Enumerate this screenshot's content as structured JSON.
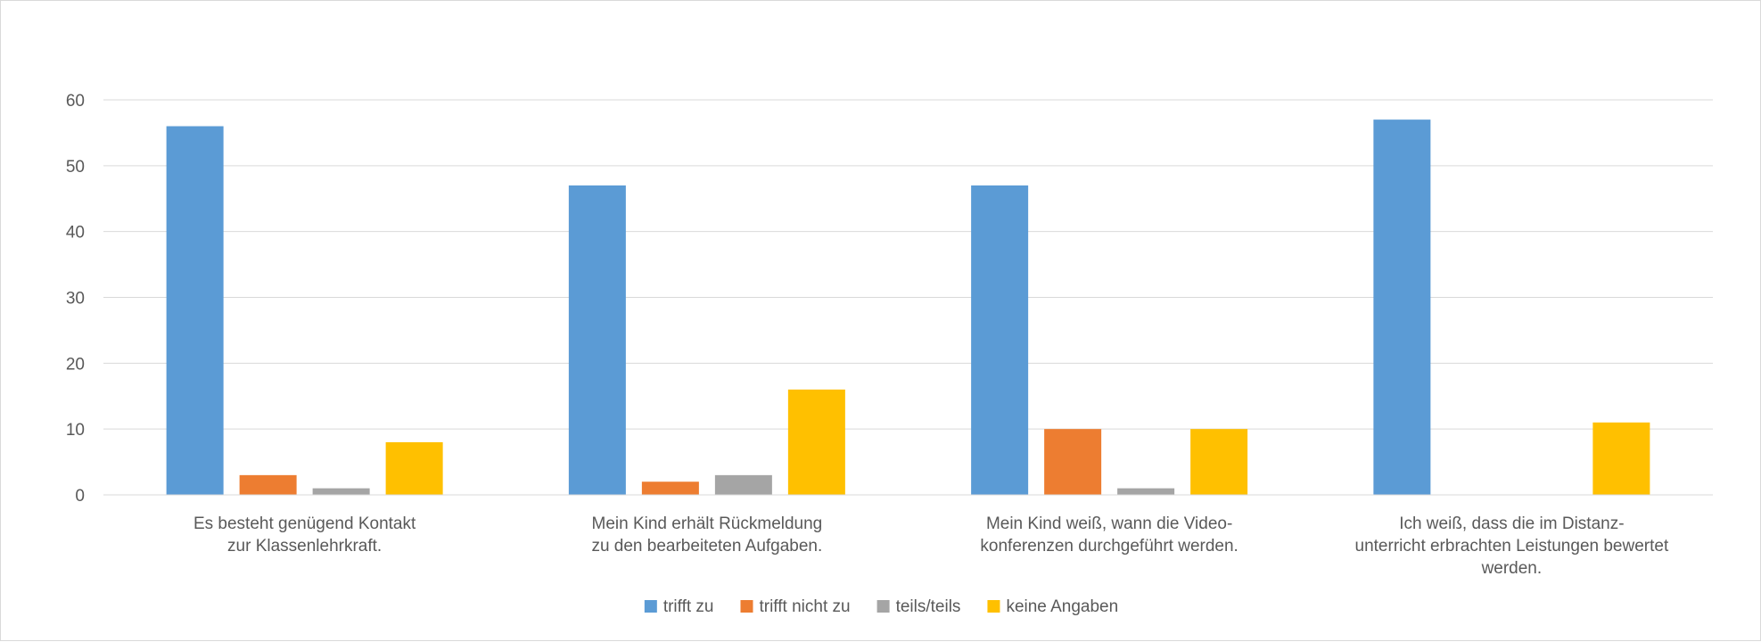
{
  "chart_data": {
    "type": "bar",
    "title": "",
    "xlabel": "",
    "ylabel": "",
    "categories": [
      [
        "Es besteht genügend Kontakt",
        "zur Klassenlehrkraft."
      ],
      [
        "Mein Kind erhält Rückmeldung",
        "zu den bearbeiteten Aufgaben."
      ],
      [
        "Mein Kind weiß, wann die Video-",
        "konferenzen durchgeführt werden."
      ],
      [
        "Ich weiß, dass die im Distanz-",
        "unterricht erbrachten Leistungen bewertet",
        "werden."
      ]
    ],
    "series": [
      {
        "name": "trifft zu",
        "color": "#5b9bd5",
        "values": [
          56,
          47,
          47,
          57
        ]
      },
      {
        "name": "trifft nicht zu",
        "color": "#ed7d31",
        "values": [
          3,
          2,
          10,
          0
        ]
      },
      {
        "name": "teils/teils",
        "color": "#a5a5a5",
        "values": [
          1,
          3,
          1,
          0
        ]
      },
      {
        "name": "keine Angaben",
        "color": "#ffc000",
        "values": [
          8,
          16,
          10,
          11
        ]
      }
    ],
    "ylim": [
      0,
      60
    ],
    "yticks": [
      0,
      10,
      20,
      30,
      40,
      50,
      60
    ],
    "grid": true,
    "legend_position": "bottom"
  }
}
